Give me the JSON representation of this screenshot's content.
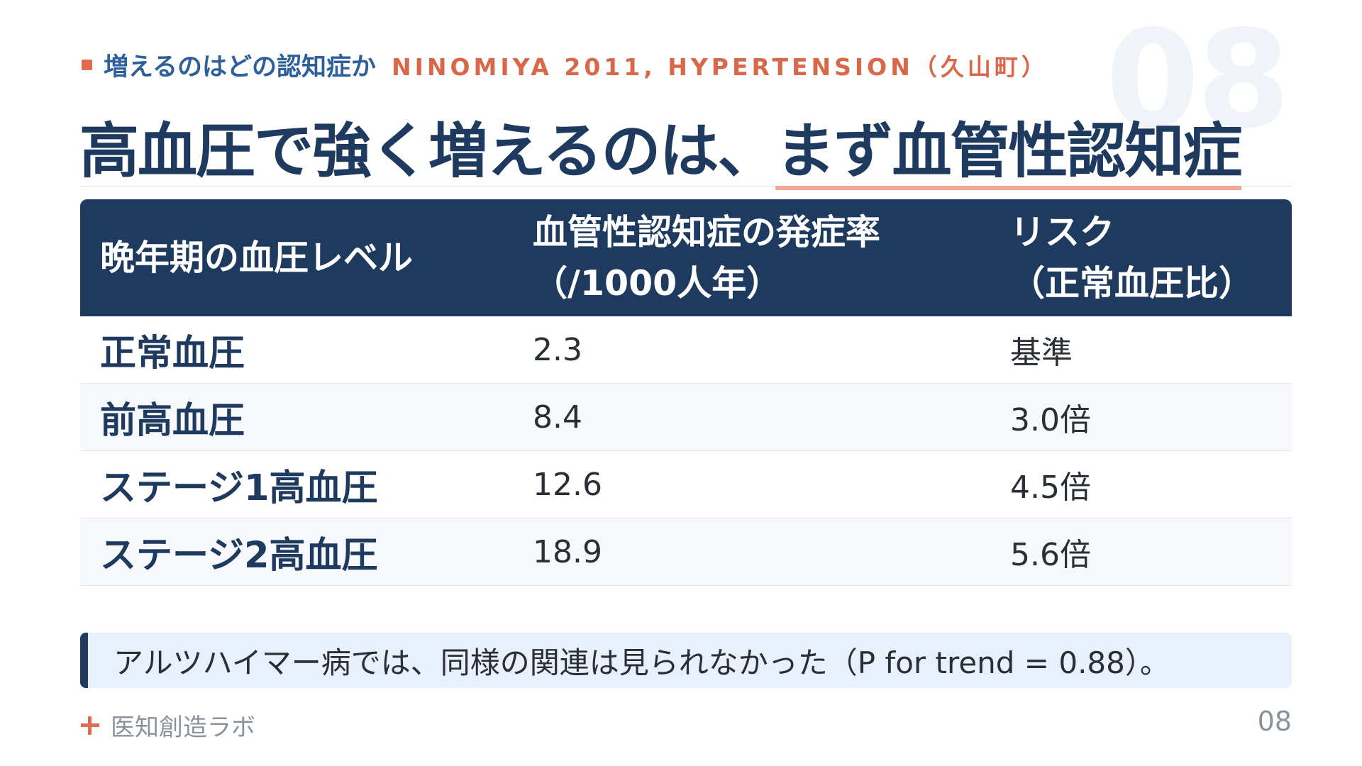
{
  "slide_number_bg": "08",
  "kicker": {
    "topic": "増えるのはどの認知症か",
    "source": "NINOMIYA 2011, HYPERTENSION（久山町）"
  },
  "title": {
    "main": "高血圧で強く増えるのは、",
    "highlight": "まず血管性認知症"
  },
  "table": {
    "headers": [
      "晩年期の血圧レベル",
      "血管性認知症の発症率\n（/1000人年）",
      "リスク\n（正常血圧比）"
    ],
    "rows": [
      {
        "level": "正常血圧",
        "rate": "2.3",
        "risk": "基準"
      },
      {
        "level": "前高血圧",
        "rate": "8.4",
        "risk": "3.0倍"
      },
      {
        "level": "ステージ1高血圧",
        "rate": "12.6",
        "risk": "4.5倍"
      },
      {
        "level": "ステージ2高血圧",
        "rate": "18.9",
        "risk": "5.6倍"
      }
    ]
  },
  "note": "アルツハイマー病では、同様の関連は見られなかった（P for trend = 0.88）。",
  "footer": {
    "brand": "医知創造ラボ",
    "page": "08"
  },
  "colors": {
    "navy": "#1e3a5f",
    "accent": "#e06c4f",
    "underline": "#f2a896",
    "note_bar": "#1e3a5f",
    "note_bg": "#e8f1fb"
  }
}
